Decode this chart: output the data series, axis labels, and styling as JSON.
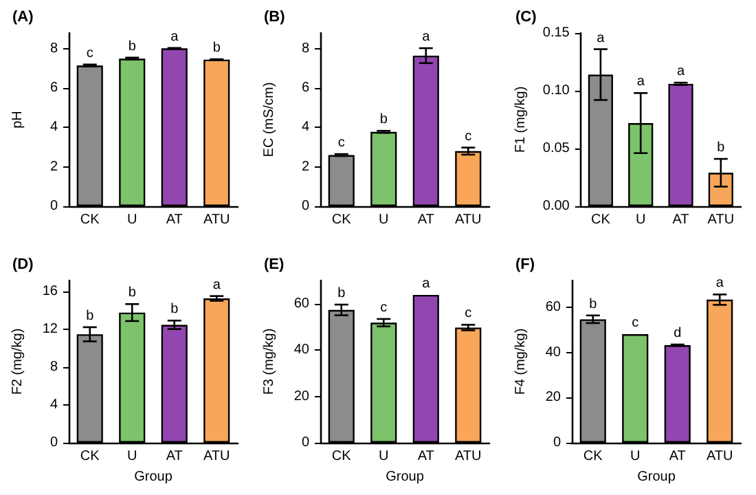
{
  "chart_data": [
    {
      "type": "bar",
      "title": "(A)",
      "ylabel": "pH",
      "categories": [
        "CK",
        "U",
        "AT",
        "ATU"
      ],
      "values": [
        7.15,
        7.5,
        8.02,
        7.45
      ],
      "errors": [
        0.05,
        0.05,
        0.02,
        0.02
      ],
      "colors": [
        "#8c8c8c",
        "#7dc36b",
        "#9247b0",
        "#f8a75a"
      ],
      "ylim": [
        0,
        8.8
      ],
      "yticks": [
        0,
        2,
        4,
        6,
        8
      ],
      "annotations": [
        {
          "text": "c",
          "x": "CK",
          "y": 7.2
        },
        {
          "text": "b",
          "x": "U",
          "y": 7.55
        },
        {
          "text": "a",
          "x": "AT",
          "y": 8.04
        },
        {
          "text": "b",
          "x": "ATU",
          "y": 7.47
        }
      ]
    },
    {
      "type": "bar",
      "title": "(B)",
      "ylabel": "EC (mS/cm)",
      "categories": [
        "CK",
        "U",
        "AT",
        "ATU"
      ],
      "values": [
        2.6,
        3.78,
        7.65,
        2.8
      ],
      "errors": [
        0.05,
        0.05,
        0.38,
        0.18
      ],
      "colors": [
        "#8c8c8c",
        "#7dc36b",
        "#9247b0",
        "#f8a75a"
      ],
      "ylim": [
        0,
        8.8
      ],
      "yticks": [
        0,
        2,
        4,
        6,
        8
      ],
      "annotations": [
        {
          "text": "c",
          "x": "CK",
          "y": 2.65
        },
        {
          "text": "b",
          "x": "U",
          "y": 3.83
        },
        {
          "text": "a",
          "x": "AT",
          "y": 8.03
        },
        {
          "text": "c",
          "x": "ATU",
          "y": 2.98
        }
      ]
    },
    {
      "type": "bar",
      "title": "(C)",
      "ylabel": "F1 (mg/kg)",
      "categories": [
        "CK",
        "U",
        "AT",
        "ATU"
      ],
      "values": [
        0.114,
        0.072,
        0.106,
        0.029
      ],
      "errors": [
        0.022,
        0.026,
        0.001,
        0.012
      ],
      "colors": [
        "#8c8c8c",
        "#7dc36b",
        "#9247b0",
        "#f8a75a"
      ],
      "ylim": [
        0,
        0.15
      ],
      "yticks": [
        {
          "value": 0,
          "label": "0.00"
        },
        {
          "value": 0.05,
          "label": "0.05"
        },
        {
          "value": 0.1,
          "label": "0.10"
        },
        {
          "value": 0.15,
          "label": "0.15"
        }
      ],
      "annotations": [
        {
          "text": "a",
          "x": "CK",
          "y": 0.136
        },
        {
          "text": "a",
          "x": "U",
          "y": 0.098
        },
        {
          "text": "a",
          "x": "AT",
          "y": 0.107
        },
        {
          "text": "b",
          "x": "ATU",
          "y": 0.041
        }
      ]
    },
    {
      "type": "bar",
      "title": "(D)",
      "ylabel": "F2 (mg/kg)",
      "xlabel": "Group",
      "categories": [
        "CK",
        "U",
        "AT",
        "ATU"
      ],
      "values": [
        11.5,
        13.8,
        12.5,
        15.3
      ],
      "errors": [
        0.75,
        0.9,
        0.45,
        0.25
      ],
      "colors": [
        "#8c8c8c",
        "#7dc36b",
        "#9247b0",
        "#f8a75a"
      ],
      "ylim": [
        0,
        17.2
      ],
      "yticks": [
        0,
        4,
        8,
        12,
        16
      ],
      "annotations": [
        {
          "text": "b",
          "x": "CK",
          "y": 12.25
        },
        {
          "text": "b",
          "x": "U",
          "y": 14.7
        },
        {
          "text": "b",
          "x": "AT",
          "y": 12.95
        },
        {
          "text": "a",
          "x": "ATU",
          "y": 15.55
        }
      ]
    },
    {
      "type": "bar",
      "title": "(E)",
      "ylabel": "F3 (mg/kg)",
      "xlabel": "Group",
      "categories": [
        "CK",
        "U",
        "AT",
        "ATU"
      ],
      "values": [
        57.3,
        51.8,
        63.8,
        49.7
      ],
      "errors": [
        2.3,
        1.6,
        null,
        1.2
      ],
      "colors": [
        "#8c8c8c",
        "#7dc36b",
        "#9247b0",
        "#f8a75a"
      ],
      "ylim": [
        0,
        70
      ],
      "yticks": [
        0,
        20,
        40,
        60
      ],
      "annotations": [
        {
          "text": "b",
          "x": "CK",
          "y": 59.6
        },
        {
          "text": "c",
          "x": "U",
          "y": 53.4
        },
        {
          "text": "a",
          "x": "AT",
          "y": 63.8
        },
        {
          "text": "c",
          "x": "ATU",
          "y": 50.9
        }
      ]
    },
    {
      "type": "bar",
      "title": "(F)",
      "ylabel": "F4 (mg/kg)",
      "xlabel": "Group",
      "categories": [
        "CK",
        "U",
        "AT",
        "ATU"
      ],
      "values": [
        54.8,
        48.2,
        43.3,
        63.5
      ],
      "errors": [
        1.7,
        null,
        0.3,
        2.3
      ],
      "colors": [
        "#8c8c8c",
        "#7dc36b",
        "#9247b0",
        "#f8a75a"
      ],
      "ylim": [
        0,
        72
      ],
      "yticks": [
        0,
        20,
        40,
        60
      ],
      "annotations": [
        {
          "text": "b",
          "x": "CK",
          "y": 56.5
        },
        {
          "text": "c",
          "x": "U",
          "y": 48.2
        },
        {
          "text": "d",
          "x": "AT",
          "y": 43.6
        },
        {
          "text": "a",
          "x": "ATU",
          "y": 65.8
        }
      ]
    }
  ]
}
